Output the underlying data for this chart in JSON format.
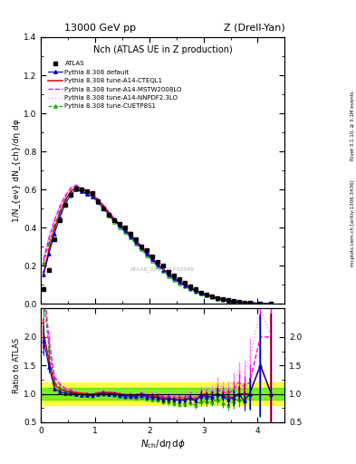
{
  "title_top": "13000 GeV pp",
  "title_right": "Z (Drell-Yan)",
  "main_title": "Nch (ATLAS UE in Z production)",
  "xlabel": "N_{ch}/dη dφ",
  "ylabel_main": "1/N_{ev} dN_{ch}/dη dφ",
  "ylabel_ratio": "Ratio to ATLAS",
  "right_label_top": "Rivet 3.1.10, ≥ 3.1M events",
  "right_label_bottom": "mcplots.cern.ch [arXiv:1306.3436]",
  "watermark": "ATLAS_2019_I1732549",
  "atlas_x": [
    0.05,
    0.15,
    0.25,
    0.35,
    0.45,
    0.55,
    0.65,
    0.75,
    0.85,
    0.95,
    1.05,
    1.15,
    1.25,
    1.35,
    1.45,
    1.55,
    1.65,
    1.75,
    1.85,
    1.95,
    2.05,
    2.15,
    2.25,
    2.35,
    2.45,
    2.55,
    2.65,
    2.75,
    2.85,
    2.95,
    3.05,
    3.15,
    3.25,
    3.35,
    3.45,
    3.55,
    3.65,
    3.75,
    3.85,
    4.05,
    4.25
  ],
  "atlas_y": [
    0.08,
    0.18,
    0.34,
    0.44,
    0.52,
    0.57,
    0.605,
    0.6,
    0.59,
    0.58,
    0.54,
    0.5,
    0.47,
    0.44,
    0.42,
    0.4,
    0.37,
    0.34,
    0.3,
    0.28,
    0.25,
    0.22,
    0.2,
    0.17,
    0.15,
    0.13,
    0.11,
    0.09,
    0.08,
    0.06,
    0.05,
    0.04,
    0.03,
    0.025,
    0.02,
    0.015,
    0.01,
    0.008,
    0.005,
    0.002,
    0.001
  ],
  "atlas_yerr": [
    0.01,
    0.01,
    0.01,
    0.01,
    0.01,
    0.01,
    0.01,
    0.01,
    0.01,
    0.01,
    0.01,
    0.01,
    0.01,
    0.01,
    0.01,
    0.01,
    0.01,
    0.01,
    0.01,
    0.01,
    0.01,
    0.01,
    0.01,
    0.01,
    0.008,
    0.008,
    0.007,
    0.006,
    0.005,
    0.005,
    0.004,
    0.003,
    0.003,
    0.002,
    0.002,
    0.002,
    0.001,
    0.001,
    0.001,
    0.001,
    0.001
  ],
  "x_mc": [
    0.05,
    0.15,
    0.25,
    0.35,
    0.45,
    0.55,
    0.65,
    0.75,
    0.85,
    0.95,
    1.05,
    1.15,
    1.25,
    1.35,
    1.45,
    1.55,
    1.65,
    1.75,
    1.85,
    1.95,
    2.05,
    2.15,
    2.25,
    2.35,
    2.45,
    2.55,
    2.65,
    2.75,
    2.85,
    2.95,
    3.05,
    3.15,
    3.25,
    3.35,
    3.45,
    3.55,
    3.65,
    3.75,
    3.85,
    4.05,
    4.25
  ],
  "default_y": [
    0.155,
    0.265,
    0.37,
    0.455,
    0.525,
    0.575,
    0.6,
    0.59,
    0.575,
    0.565,
    0.535,
    0.505,
    0.47,
    0.44,
    0.41,
    0.385,
    0.355,
    0.325,
    0.295,
    0.265,
    0.235,
    0.205,
    0.18,
    0.155,
    0.135,
    0.115,
    0.098,
    0.083,
    0.07,
    0.058,
    0.047,
    0.038,
    0.03,
    0.024,
    0.018,
    0.014,
    0.01,
    0.007,
    0.005,
    0.003,
    0.001
  ],
  "cteql1_y": [
    0.165,
    0.285,
    0.395,
    0.475,
    0.545,
    0.59,
    0.615,
    0.605,
    0.59,
    0.575,
    0.545,
    0.515,
    0.478,
    0.447,
    0.417,
    0.392,
    0.362,
    0.33,
    0.3,
    0.27,
    0.24,
    0.21,
    0.185,
    0.158,
    0.137,
    0.117,
    0.099,
    0.084,
    0.071,
    0.058,
    0.048,
    0.038,
    0.03,
    0.024,
    0.019,
    0.014,
    0.01,
    0.008,
    0.005,
    0.003,
    0.001
  ],
  "mstw_y": [
    0.235,
    0.345,
    0.44,
    0.51,
    0.568,
    0.608,
    0.622,
    0.605,
    0.59,
    0.578,
    0.55,
    0.518,
    0.482,
    0.45,
    0.42,
    0.396,
    0.366,
    0.334,
    0.304,
    0.274,
    0.245,
    0.215,
    0.19,
    0.162,
    0.141,
    0.121,
    0.103,
    0.087,
    0.073,
    0.06,
    0.05,
    0.04,
    0.032,
    0.026,
    0.02,
    0.016,
    0.012,
    0.009,
    0.006,
    0.004,
    0.002
  ],
  "nnpdf_y": [
    0.245,
    0.355,
    0.445,
    0.518,
    0.573,
    0.612,
    0.625,
    0.61,
    0.596,
    0.582,
    0.552,
    0.52,
    0.485,
    0.453,
    0.423,
    0.398,
    0.37,
    0.338,
    0.308,
    0.278,
    0.25,
    0.22,
    0.195,
    0.167,
    0.145,
    0.124,
    0.106,
    0.09,
    0.076,
    0.063,
    0.052,
    0.043,
    0.035,
    0.028,
    0.022,
    0.018,
    0.014,
    0.011,
    0.008,
    0.005,
    0.002
  ],
  "cuetp_y": [
    0.215,
    0.318,
    0.41,
    0.488,
    0.548,
    0.59,
    0.605,
    0.593,
    0.577,
    0.562,
    0.532,
    0.5,
    0.464,
    0.432,
    0.402,
    0.377,
    0.347,
    0.315,
    0.285,
    0.255,
    0.226,
    0.197,
    0.172,
    0.146,
    0.126,
    0.107,
    0.09,
    0.076,
    0.064,
    0.052,
    0.043,
    0.034,
    0.027,
    0.021,
    0.016,
    0.013,
    0.009,
    0.007,
    0.005,
    0.003,
    0.001
  ],
  "default_yerr": [
    0.008,
    0.008,
    0.006,
    0.005,
    0.005,
    0.004,
    0.004,
    0.004,
    0.004,
    0.004,
    0.004,
    0.004,
    0.004,
    0.004,
    0.004,
    0.004,
    0.003,
    0.003,
    0.003,
    0.003,
    0.003,
    0.003,
    0.003,
    0.003,
    0.002,
    0.002,
    0.002,
    0.002,
    0.002,
    0.002,
    0.002,
    0.002,
    0.001,
    0.001,
    0.001,
    0.001,
    0.001,
    0.001,
    0.001,
    0.001,
    0.001
  ],
  "cteql1_yerr": [
    0.008,
    0.008,
    0.006,
    0.005,
    0.005,
    0.004,
    0.004,
    0.004,
    0.004,
    0.004,
    0.004,
    0.004,
    0.004,
    0.004,
    0.004,
    0.004,
    0.003,
    0.003,
    0.003,
    0.003,
    0.003,
    0.003,
    0.003,
    0.003,
    0.002,
    0.002,
    0.002,
    0.002,
    0.002,
    0.002,
    0.002,
    0.002,
    0.001,
    0.001,
    0.001,
    0.001,
    0.001,
    0.001,
    0.001,
    0.001,
    0.001
  ],
  "mstw_yerr": [
    0.006,
    0.006,
    0.005,
    0.005,
    0.004,
    0.004,
    0.004,
    0.004,
    0.004,
    0.004,
    0.004,
    0.004,
    0.003,
    0.003,
    0.003,
    0.003,
    0.003,
    0.003,
    0.003,
    0.003,
    0.003,
    0.002,
    0.002,
    0.002,
    0.002,
    0.002,
    0.002,
    0.002,
    0.002,
    0.002,
    0.002,
    0.001,
    0.001,
    0.001,
    0.001,
    0.001,
    0.001,
    0.001,
    0.001,
    0.001,
    0.001
  ],
  "nnpdf_yerr": [
    0.006,
    0.006,
    0.005,
    0.005,
    0.004,
    0.004,
    0.004,
    0.004,
    0.004,
    0.004,
    0.004,
    0.004,
    0.003,
    0.003,
    0.003,
    0.003,
    0.003,
    0.003,
    0.003,
    0.003,
    0.003,
    0.002,
    0.002,
    0.002,
    0.002,
    0.002,
    0.002,
    0.002,
    0.002,
    0.002,
    0.002,
    0.001,
    0.001,
    0.001,
    0.001,
    0.001,
    0.001,
    0.001,
    0.001,
    0.001,
    0.001
  ],
  "cuetp_yerr": [
    0.007,
    0.007,
    0.006,
    0.005,
    0.005,
    0.004,
    0.004,
    0.004,
    0.004,
    0.004,
    0.004,
    0.004,
    0.003,
    0.003,
    0.003,
    0.003,
    0.003,
    0.003,
    0.003,
    0.003,
    0.003,
    0.002,
    0.002,
    0.002,
    0.002,
    0.002,
    0.002,
    0.002,
    0.002,
    0.002,
    0.002,
    0.001,
    0.001,
    0.001,
    0.001,
    0.001,
    0.001,
    0.001,
    0.001,
    0.001,
    0.001
  ],
  "ylim_main": [
    0.0,
    1.4
  ],
  "ylim_ratio": [
    0.5,
    2.5
  ],
  "yticks_ratio": [
    0.5,
    1.0,
    1.5,
    2.0
  ],
  "xlim": [
    0.0,
    4.5
  ],
  "ratio_band_yellow": 0.2,
  "ratio_band_green": 0.1,
  "col_default": "#0000cc",
  "col_cteql1": "#dd0000",
  "col_mstw": "#ff00ff",
  "col_nnpdf": "#ff88ff",
  "col_cuetp": "#00aa00"
}
